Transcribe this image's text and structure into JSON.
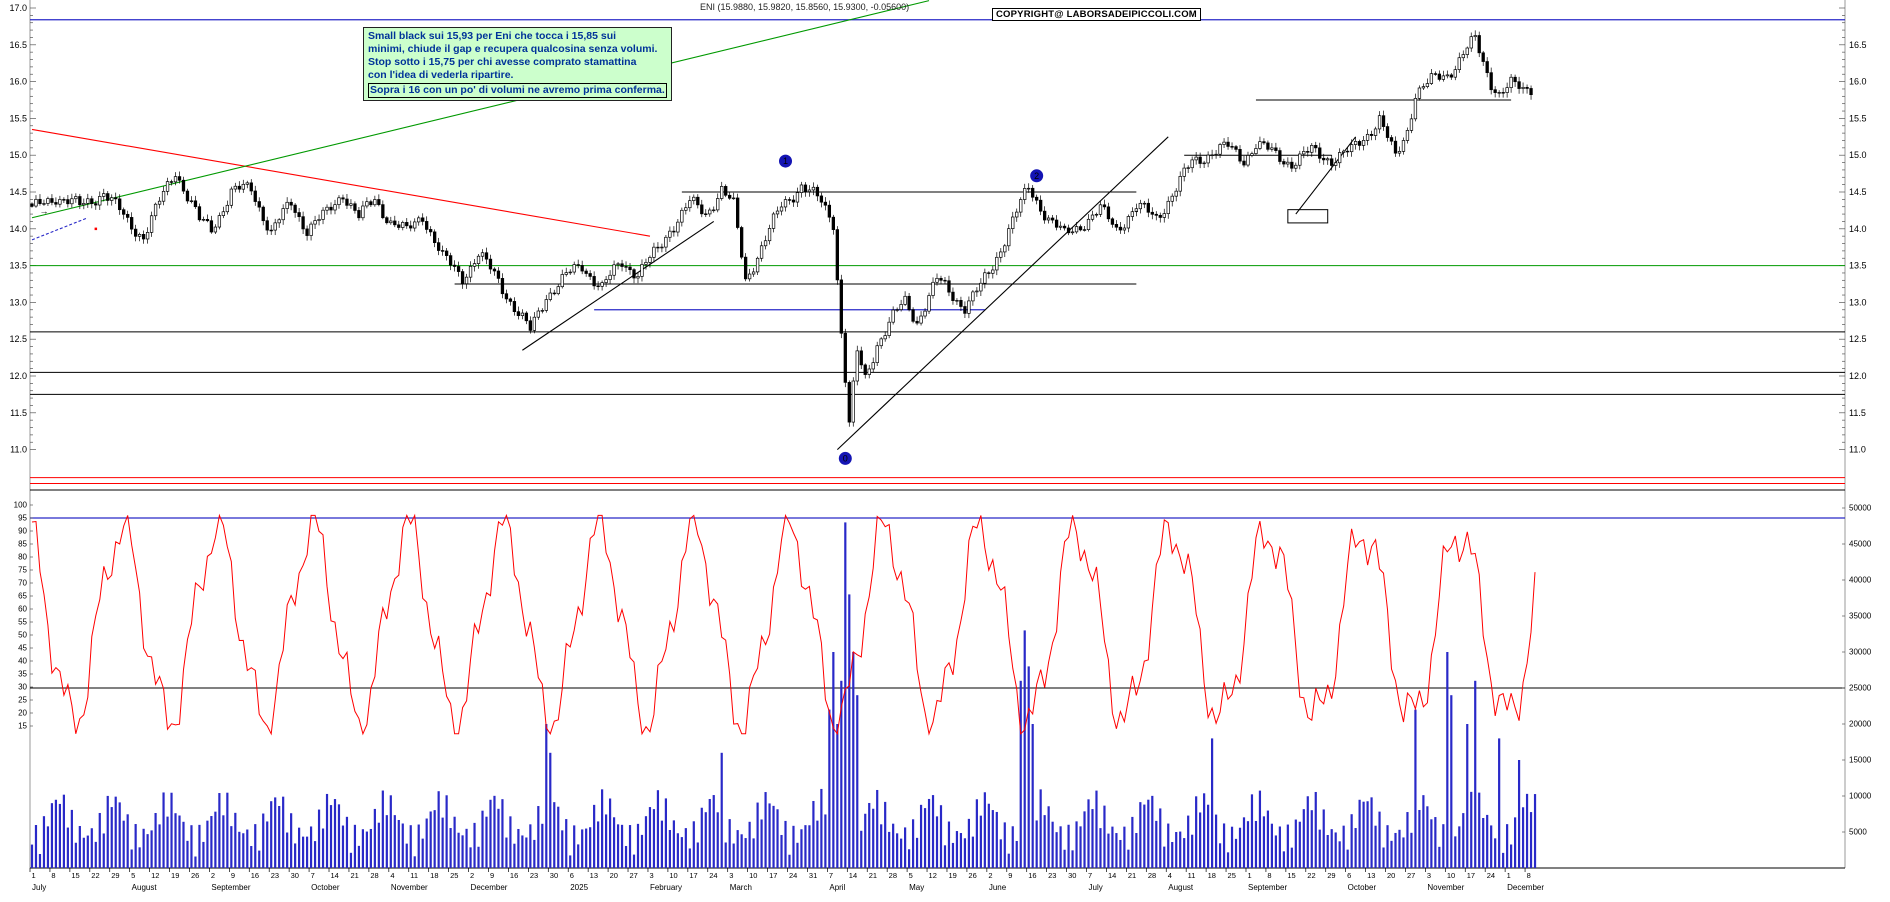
{
  "title": "ENI (15.9880, 15.9820, 15.8560, 15.9300, -0.05600)",
  "copyright": "COPYRIGHT@ LABORSADEIPICCOLI.COM",
  "annotation": {
    "lines": [
      "Small black sui 15,93 per Eni che tocca i 15,85 sui",
      "minimi, chiude il gap e recupera qualcosina senza volumi.",
      "Stop sotto i 15,75 per chi avesse comprato stamattina",
      "con l'idea di vederla ripartire."
    ],
    "emphasis": "Sopra i 16 con un po' di volumi ne avremo prima conferma."
  },
  "chart_data": {
    "type": "candlestick",
    "symbol": "ENI",
    "quote": {
      "open": 15.988,
      "high": 15.982,
      "low": 15.856,
      "close": 15.93,
      "change": -0.056
    },
    "price_axis": {
      "min": 11.0,
      "max": 17.0,
      "step": 0.5,
      "left_labels": [
        "17.0",
        "16.5",
        "16.0",
        "15.5",
        "15.0",
        "14.5",
        "14.0",
        "13.5",
        "13.0",
        "12.5",
        "12.0",
        "11.5",
        "11.0"
      ],
      "right_labels": [
        "16.5",
        "16.0",
        "15.5",
        "15.0",
        "14.5",
        "14.0",
        "13.5",
        "13.0",
        "12.5",
        "12.0",
        "11.5",
        "11.0"
      ]
    },
    "oscillator_axis": {
      "min": 15,
      "max": 100,
      "step": 5,
      "labels": [
        "100",
        "95",
        "90",
        "85",
        "80",
        "75",
        "70",
        "65",
        "60",
        "55",
        "50",
        "45",
        "40",
        "35",
        "30",
        "25",
        "20",
        "15"
      ]
    },
    "volume_axis": {
      "min": 0,
      "max": 50000,
      "step": 5000,
      "labels": [
        "50000",
        "45000",
        "40000",
        "35000",
        "30000",
        "25000",
        "20000",
        "15000",
        "10000",
        "5000"
      ]
    },
    "months": [
      {
        "label": "July",
        "days": [
          1,
          8,
          15,
          22,
          29
        ]
      },
      {
        "label": "August",
        "days": [
          5,
          12,
          19,
          26
        ]
      },
      {
        "label": "September",
        "days": [
          2,
          9,
          16,
          23,
          30
        ]
      },
      {
        "label": "October",
        "days": [
          7,
          14,
          21,
          28
        ]
      },
      {
        "label": "November",
        "days": [
          4,
          11,
          18,
          25
        ]
      },
      {
        "label": "December",
        "days": [
          2,
          9,
          16,
          23,
          30
        ]
      },
      {
        "label": "2025",
        "days": [
          6,
          13,
          20,
          27
        ]
      },
      {
        "label": "February",
        "days": [
          3,
          10,
          17,
          24
        ]
      },
      {
        "label": "March",
        "days": [
          3,
          10,
          17,
          24,
          31
        ]
      },
      {
        "label": "April",
        "days": [
          7,
          14,
          21,
          28
        ]
      },
      {
        "label": "May",
        "days": [
          5,
          12,
          19,
          26
        ]
      },
      {
        "label": "June",
        "days": [
          2,
          9,
          16,
          23,
          30
        ]
      },
      {
        "label": "July",
        "days": [
          7,
          14,
          21,
          28
        ]
      },
      {
        "label": "August",
        "days": [
          4,
          11,
          18,
          25
        ]
      },
      {
        "label": "September",
        "days": [
          1,
          8,
          15,
          22,
          29
        ]
      },
      {
        "label": "October",
        "days": [
          6,
          13,
          20,
          27
        ]
      },
      {
        "label": "November",
        "days": [
          3,
          10,
          17,
          24
        ]
      },
      {
        "label": "December",
        "days": [
          1,
          8
        ]
      }
    ],
    "price_waypoints": [
      [
        0,
        14.25
      ],
      [
        6,
        14.45
      ],
      [
        12,
        14.3
      ],
      [
        18,
        14.5
      ],
      [
        24,
        14.1
      ],
      [
        28,
        13.9
      ],
      [
        36,
        14.8
      ],
      [
        42,
        14.1
      ],
      [
        45,
        14.0
      ],
      [
        50,
        14.5
      ],
      [
        55,
        14.55
      ],
      [
        60,
        13.95
      ],
      [
        65,
        14.35
      ],
      [
        69,
        14.0
      ],
      [
        74,
        14.2
      ],
      [
        78,
        14.5
      ],
      [
        82,
        14.15
      ],
      [
        86,
        14.4
      ],
      [
        90,
        14.1
      ],
      [
        94,
        13.95
      ],
      [
        98,
        14.2
      ],
      [
        103,
        13.6
      ],
      [
        108,
        13.35
      ],
      [
        112,
        13.65
      ],
      [
        117,
        13.3
      ],
      [
        122,
        12.85
      ],
      [
        125,
        12.6
      ],
      [
        129,
        13.1
      ],
      [
        134,
        13.35
      ],
      [
        138,
        13.5
      ],
      [
        143,
        13.2
      ],
      [
        148,
        13.55
      ],
      [
        152,
        13.4
      ],
      [
        157,
        13.7
      ],
      [
        160,
        14.0
      ],
      [
        165,
        14.35
      ],
      [
        169,
        14.2
      ],
      [
        173,
        14.55
      ],
      [
        176,
        14.3
      ],
      [
        179,
        13.3
      ],
      [
        182,
        13.65
      ],
      [
        188,
        14.3
      ],
      [
        193,
        14.6
      ],
      [
        198,
        14.35
      ],
      [
        201,
        14.1
      ],
      [
        203,
        12.6
      ],
      [
        205,
        11.35
      ],
      [
        207,
        12.3
      ],
      [
        209,
        11.95
      ],
      [
        212,
        12.45
      ],
      [
        216,
        12.8
      ],
      [
        219,
        13.0
      ],
      [
        222,
        12.75
      ],
      [
        227,
        13.3
      ],
      [
        231,
        13.1
      ],
      [
        234,
        12.95
      ],
      [
        238,
        13.2
      ],
      [
        241,
        13.5
      ],
      [
        245,
        14.0
      ],
      [
        250,
        14.55
      ],
      [
        255,
        14.15
      ],
      [
        259,
        13.9
      ],
      [
        264,
        14.1
      ],
      [
        268,
        14.25
      ],
      [
        272,
        14.0
      ],
      [
        277,
        14.3
      ],
      [
        282,
        14.15
      ],
      [
        287,
        14.55
      ],
      [
        291,
        14.9
      ],
      [
        296,
        15.05
      ],
      [
        300,
        15.1
      ],
      [
        304,
        14.95
      ],
      [
        307,
        15.15
      ],
      [
        312,
        15.0
      ],
      [
        316,
        14.9
      ],
      [
        321,
        15.05
      ],
      [
        326,
        14.95
      ],
      [
        331,
        15.05
      ],
      [
        335,
        15.3
      ],
      [
        338,
        15.5
      ],
      [
        342,
        14.95
      ],
      [
        345,
        15.35
      ],
      [
        347,
        15.85
      ],
      [
        351,
        16.0
      ],
      [
        355,
        16.1
      ],
      [
        360,
        16.45
      ],
      [
        362,
        16.55
      ],
      [
        364,
        16.25
      ],
      [
        366,
        16.0
      ],
      [
        368,
        15.85
      ],
      [
        371,
        15.95
      ],
      [
        374,
        15.88
      ],
      [
        376,
        15.93
      ]
    ],
    "levels": [
      {
        "price": 16.84,
        "color": "blue",
        "full": true
      },
      {
        "price": 15.75,
        "color": "black",
        "d1": 307,
        "d2": 371
      },
      {
        "price": 15.0,
        "color": "black",
        "d1": 289,
        "d2": 326
      },
      {
        "price": 14.5,
        "color": "black",
        "d1": 163,
        "d2": 277
      },
      {
        "price": 13.5,
        "color": "green",
        "full": true
      },
      {
        "price": 13.25,
        "color": "black",
        "d1": 106,
        "d2": 277
      },
      {
        "price": 12.9,
        "color": "blue",
        "d1": 141,
        "d2": 239
      },
      {
        "price": 12.6,
        "color": "black",
        "full": true
      },
      {
        "price": 12.05,
        "color": "black",
        "full": true
      },
      {
        "price": 11.75,
        "color": "black",
        "full": true
      },
      {
        "price": 10.62,
        "color": "red",
        "full": true
      },
      {
        "price": 10.54,
        "color": "red",
        "full": true
      }
    ],
    "trendlines": [
      {
        "x": [
          0,
          155
        ],
        "p": [
          15.35,
          13.9
        ],
        "color": "red"
      },
      {
        "x": [
          0,
          225
        ],
        "p": [
          14.15,
          17.1
        ],
        "color": "green"
      },
      {
        "x": [
          123,
          171
        ],
        "p": [
          12.35,
          14.1
        ],
        "color": "black"
      },
      {
        "x": [
          202,
          285
        ],
        "p": [
          11.0,
          15.25
        ],
        "color": "black"
      },
      {
        "x": [
          317,
          332
        ],
        "p": [
          14.2,
          15.25
        ],
        "color": "black"
      },
      {
        "x": [
          0,
          14
        ],
        "p": [
          13.85,
          14.15
        ],
        "color": "blue",
        "dash": true
      }
    ],
    "range_box": {
      "d1": 315,
      "d2": 325,
      "p1": 14.26,
      "p2": 14.08
    },
    "markers": [
      {
        "label": "0",
        "day": 204,
        "price": 10.88
      },
      {
        "label": "1",
        "day": 189,
        "price": 14.92
      },
      {
        "label": "2",
        "day": 252,
        "price": 14.72
      }
    ],
    "decorations": [
      {
        "type": "arrow-up",
        "day": 277,
        "price": 14.18,
        "color": "green"
      },
      {
        "type": "arrow-right",
        "day": 3,
        "price": 14.2,
        "color": "green"
      },
      {
        "type": "dot",
        "day": 16,
        "price": 14.0,
        "color": "red"
      }
    ],
    "oscillator": {
      "base": 54,
      "a1": 36,
      "f1": 0.262,
      "a2": 8,
      "f2": 0.8,
      "a3": 5,
      "f3": 2.17,
      "overbought_line": 95
    },
    "volume": {
      "base": 1500,
      "a1": 4500,
      "f1": 1.37,
      "a2": 5000,
      "f2": 0.23,
      "threshold_line": 25000,
      "spikes": {
        "129": 20000,
        "130": 16000,
        "173": 16000,
        "200": 22000,
        "201": 30000,
        "202": 20000,
        "203": 26000,
        "204": 48000,
        "205": 38000,
        "206": 30000,
        "207": 24000,
        "248": 26000,
        "249": 33000,
        "250": 28000,
        "251": 20000,
        "296": 18000,
        "347": 22000,
        "355": 30000,
        "356": 24000,
        "360": 20000,
        "362": 26000,
        "368": 18000,
        "373": 15000
      }
    },
    "colors": {
      "blue": "#2929c8",
      "green": "#009900",
      "red": "#ff0000",
      "black": "#000000",
      "marker": "#1414b4"
    }
  }
}
